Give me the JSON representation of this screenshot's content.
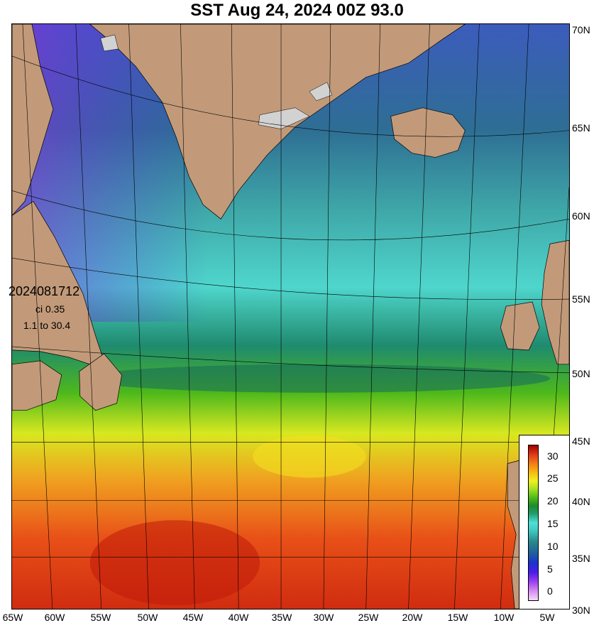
{
  "header": {
    "title": "SST Aug 24, 2024 00Z 93.0"
  },
  "info": {
    "stamp": "2024081712",
    "ci": "ci 0.35",
    "range": "1.1 to 30.4"
  },
  "lat_labels": [
    "70N",
    "65N",
    "60N",
    "55N",
    "50N",
    "45N",
    "40N",
    "35N",
    "30N"
  ],
  "lon_labels": [
    "65W",
    "60W",
    "55W",
    "50W",
    "45W",
    "40W",
    "35W",
    "30W",
    "25W",
    "20W",
    "15W",
    "10W",
    "5W"
  ],
  "colorbar": {
    "ticks": [
      "30",
      "25",
      "20",
      "15",
      "10",
      "5",
      "0"
    ]
  },
  "colors": {
    "land": "#c29a79",
    "ice": "#d2d2d2"
  }
}
